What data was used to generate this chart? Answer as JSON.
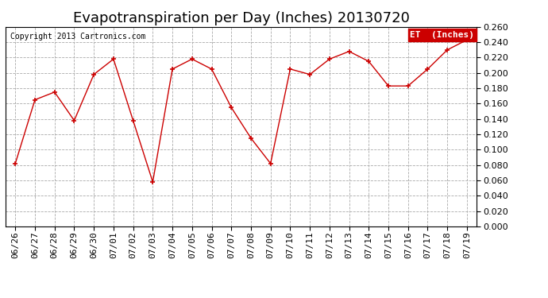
{
  "title": "Evapotranspiration per Day (Inches) 20130720",
  "copyright": "Copyright 2013 Cartronics.com",
  "legend_label": "ET  (Inches)",
  "dates": [
    "06/26",
    "06/27",
    "06/28",
    "06/29",
    "06/30",
    "07/01",
    "07/02",
    "07/03",
    "07/04",
    "07/05",
    "07/06",
    "07/07",
    "07/08",
    "07/09",
    "07/10",
    "07/11",
    "07/12",
    "07/13",
    "07/14",
    "07/15",
    "07/16",
    "07/17",
    "07/18",
    "07/19"
  ],
  "values": [
    0.082,
    0.165,
    0.175,
    0.138,
    0.198,
    0.218,
    0.138,
    0.058,
    0.205,
    0.218,
    0.205,
    0.155,
    0.115,
    0.082,
    0.205,
    0.198,
    0.218,
    0.228,
    0.215,
    0.183,
    0.183,
    0.205,
    0.23,
    0.243
  ],
  "line_color": "#cc0000",
  "marker": "+",
  "marker_size": 5,
  "ylim": [
    0.0,
    0.26
  ],
  "ytick_step": 0.02,
  "background_color": "#ffffff",
  "grid_color": "#aaaaaa",
  "title_fontsize": 13,
  "copyright_fontsize": 7,
  "tick_fontsize": 8,
  "legend_bg": "#cc0000",
  "legend_fg": "#ffffff"
}
